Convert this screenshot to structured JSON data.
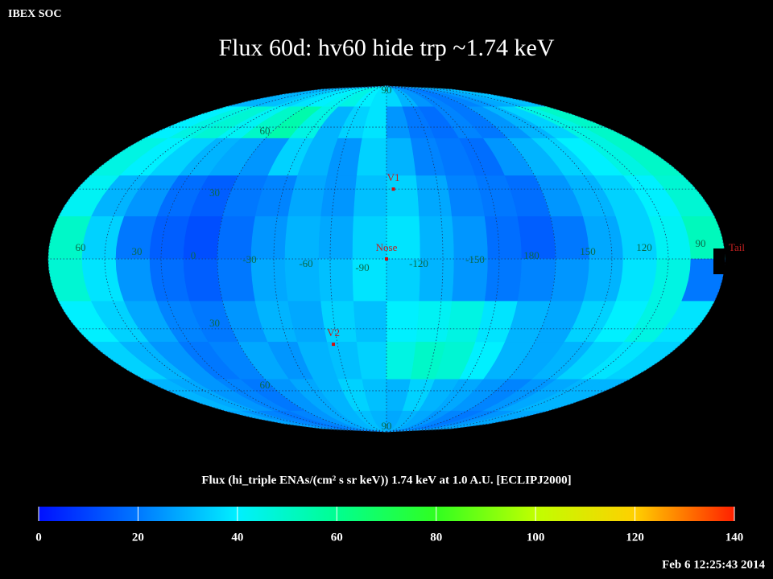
{
  "header": {
    "source": "IBEX SOC",
    "title": "Flux   60d: hv60 hide trp ~1.74 keV",
    "timestamp": "Feb  6 12:25:43 2014"
  },
  "map": {
    "center_lon": -90,
    "lon_labels": [
      60,
      30,
      0,
      -30,
      -60,
      -90,
      -120,
      -150,
      180,
      150,
      120,
      90
    ],
    "lat_labels": [
      {
        "value": 90,
        "label": "90"
      },
      {
        "value": 60,
        "label": "60"
      },
      {
        "value": 30,
        "label": "30"
      },
      {
        "value": -30,
        "label": "30"
      },
      {
        "value": -60,
        "label": "60"
      },
      {
        "value": -90,
        "label": "90"
      }
    ],
    "markers": [
      {
        "label": "V1",
        "lon": -94,
        "lat": 30
      },
      {
        "label": "Nose",
        "lon": -90,
        "lat": 0
      },
      {
        "label": "V2",
        "lon": -57.5,
        "lat": -37
      },
      {
        "label": "Tail",
        "lon": 93,
        "lat": 0
      }
    ],
    "flux": {
      "lat_edges": [
        90,
        72,
        54,
        36,
        18,
        0,
        -18,
        -36,
        -54,
        -72,
        -90
      ],
      "lon_edges": [
        90,
        72,
        54,
        36,
        18,
        0,
        -18,
        -36,
        -54,
        -72,
        -90,
        -108,
        -126,
        -144,
        -162,
        -180,
        -198,
        -216,
        -234,
        -252,
        -270
      ],
      "values": [
        [
          30,
          30,
          32,
          35,
          38,
          40,
          42,
          45,
          40,
          38,
          36,
          30,
          25,
          22,
          20,
          22,
          25,
          28,
          30,
          32
        ],
        [
          40,
          45,
          48,
          42,
          50,
          55,
          45,
          30,
          35,
          38,
          25,
          20,
          18,
          22,
          20,
          25,
          30,
          35,
          45,
          50
        ],
        [
          45,
          40,
          35,
          30,
          28,
          25,
          35,
          30,
          25,
          35,
          30,
          22,
          20,
          18,
          25,
          30,
          35,
          40,
          45,
          50
        ],
        [
          42,
          30,
          25,
          18,
          15,
          20,
          22,
          28,
          25,
          32,
          35,
          28,
          22,
          20,
          18,
          25,
          30,
          35,
          40,
          48
        ],
        [
          50,
          35,
          20,
          15,
          12,
          18,
          25,
          30,
          28,
          35,
          38,
          30,
          25,
          18,
          15,
          20,
          28,
          35,
          42,
          52
        ],
        [
          48,
          38,
          25,
          18,
          15,
          20,
          28,
          30,
          32,
          38,
          35,
          30,
          25,
          20,
          22,
          25,
          30,
          38,
          45,
          20
        ],
        [
          40,
          35,
          28,
          22,
          20,
          25,
          30,
          28,
          35,
          32,
          40,
          42,
          45,
          38,
          30,
          28,
          35,
          40,
          45,
          38
        ],
        [
          35,
          30,
          25,
          20,
          22,
          28,
          25,
          30,
          32,
          35,
          45,
          50,
          48,
          40,
          30,
          28,
          30,
          35,
          38,
          35
        ],
        [
          30,
          28,
          25,
          22,
          20,
          25,
          28,
          30,
          35,
          32,
          30,
          35,
          30,
          28,
          25,
          22,
          25,
          28,
          30,
          30
        ],
        [
          28,
          25,
          22,
          20,
          22,
          25,
          28,
          30,
          32,
          30,
          28,
          30,
          28,
          25,
          22,
          20,
          22,
          25,
          28,
          28
        ]
      ]
    }
  },
  "colorbar": {
    "label": "Flux (hi_triple ENAs/(cm² s sr keV))  1.74 keV at 1.0 A.U. [ECLIPJ2000]",
    "lim": [
      0,
      140
    ],
    "ticks": [
      0,
      20,
      40,
      60,
      80,
      100,
      120,
      140
    ],
    "colormap": [
      "#0010ff",
      "#0078ff",
      "#00f0ff",
      "#00ff90",
      "#30ff20",
      "#c0ff00",
      "#ffd000",
      "#ff2000"
    ]
  }
}
